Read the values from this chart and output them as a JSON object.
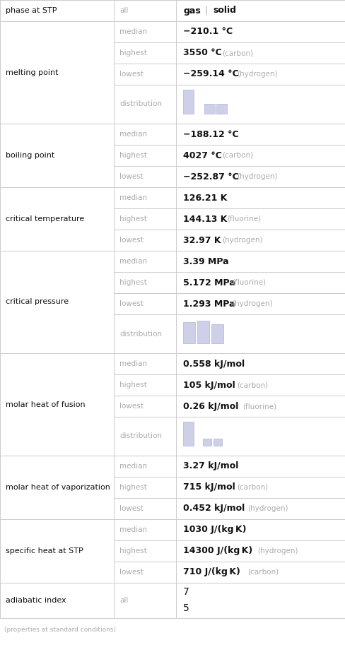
{
  "rows": [
    {
      "property": "phase at STP",
      "subrows": [
        {
          "label": "all",
          "type": "phase"
        }
      ]
    },
    {
      "property": "melting point",
      "subrows": [
        {
          "label": "median",
          "value": "−210.1 °C",
          "type": "bold"
        },
        {
          "label": "highest",
          "value": "3550 °C",
          "extra": "(carbon)",
          "type": "bold_extra"
        },
        {
          "label": "lowest",
          "value": "−259.14 °C",
          "extra": "(hydrogen)",
          "type": "bold_extra"
        },
        {
          "label": "distribution",
          "type": "dist",
          "dist_id": "melting"
        }
      ]
    },
    {
      "property": "boiling point",
      "subrows": [
        {
          "label": "median",
          "value": "−188.12 °C",
          "type": "bold"
        },
        {
          "label": "highest",
          "value": "4027 °C",
          "extra": "(carbon)",
          "type": "bold_extra"
        },
        {
          "label": "lowest",
          "value": "−252.87 °C",
          "extra": "(hydrogen)",
          "type": "bold_extra"
        }
      ]
    },
    {
      "property": "critical temperature",
      "subrows": [
        {
          "label": "median",
          "value": "126.21 K",
          "type": "bold"
        },
        {
          "label": "highest",
          "value": "144.13 K",
          "extra": "(fluorine)",
          "type": "bold_extra"
        },
        {
          "label": "lowest",
          "value": "32.97 K",
          "extra": "(hydrogen)",
          "type": "bold_extra"
        }
      ]
    },
    {
      "property": "critical pressure",
      "subrows": [
        {
          "label": "median",
          "value": "3.39 MPa",
          "type": "bold"
        },
        {
          "label": "highest",
          "value": "5.172 MPa",
          "extra": "(fluorine)",
          "type": "bold_extra"
        },
        {
          "label": "lowest",
          "value": "1.293 MPa",
          "extra": "(hydrogen)",
          "type": "bold_extra"
        },
        {
          "label": "distribution",
          "type": "dist",
          "dist_id": "pressure"
        }
      ]
    },
    {
      "property": "molar heat of fusion",
      "subrows": [
        {
          "label": "median",
          "value": "0.558 kJ/mol",
          "type": "bold"
        },
        {
          "label": "highest",
          "value": "105 kJ/mol",
          "extra": "(carbon)",
          "type": "bold_extra"
        },
        {
          "label": "lowest",
          "value": "0.26 kJ/mol",
          "extra": "(fluorine)",
          "type": "bold_extra"
        },
        {
          "label": "distribution",
          "type": "dist",
          "dist_id": "fusion"
        }
      ]
    },
    {
      "property": "molar heat of vaporization",
      "subrows": [
        {
          "label": "median",
          "value": "3.27 kJ/mol",
          "type": "bold"
        },
        {
          "label": "highest",
          "value": "715 kJ/mol",
          "extra": "(carbon)",
          "type": "bold_extra"
        },
        {
          "label": "lowest",
          "value": "0.452 kJ/mol",
          "extra": "(hydrogen)",
          "type": "bold_extra"
        }
      ]
    },
    {
      "property": "specific heat at STP",
      "subrows": [
        {
          "label": "median",
          "value": "1030 J/(kg K)",
          "type": "bold"
        },
        {
          "label": "highest",
          "value": "14300 J/(kg K)",
          "extra": "(hydrogen)",
          "type": "bold_extra"
        },
        {
          "label": "lowest",
          "value": "710 J/(kg K)",
          "extra": "(carbon)",
          "type": "bold_extra"
        }
      ]
    },
    {
      "property": "adiabatic index",
      "subrows": [
        {
          "label": "all",
          "type": "fraction"
        }
      ]
    }
  ],
  "footer": "(properties at standard conditions)",
  "bg_color": "#ffffff",
  "line_color": "#cccccc",
  "label_color": "#aaaaaa",
  "value_color": "#111111",
  "extra_color": "#aaaaaa",
  "property_color": "#111111",
  "dist_bar_color": "#cdd0e8",
  "dist_bar_edge": "#b0b4d0"
}
